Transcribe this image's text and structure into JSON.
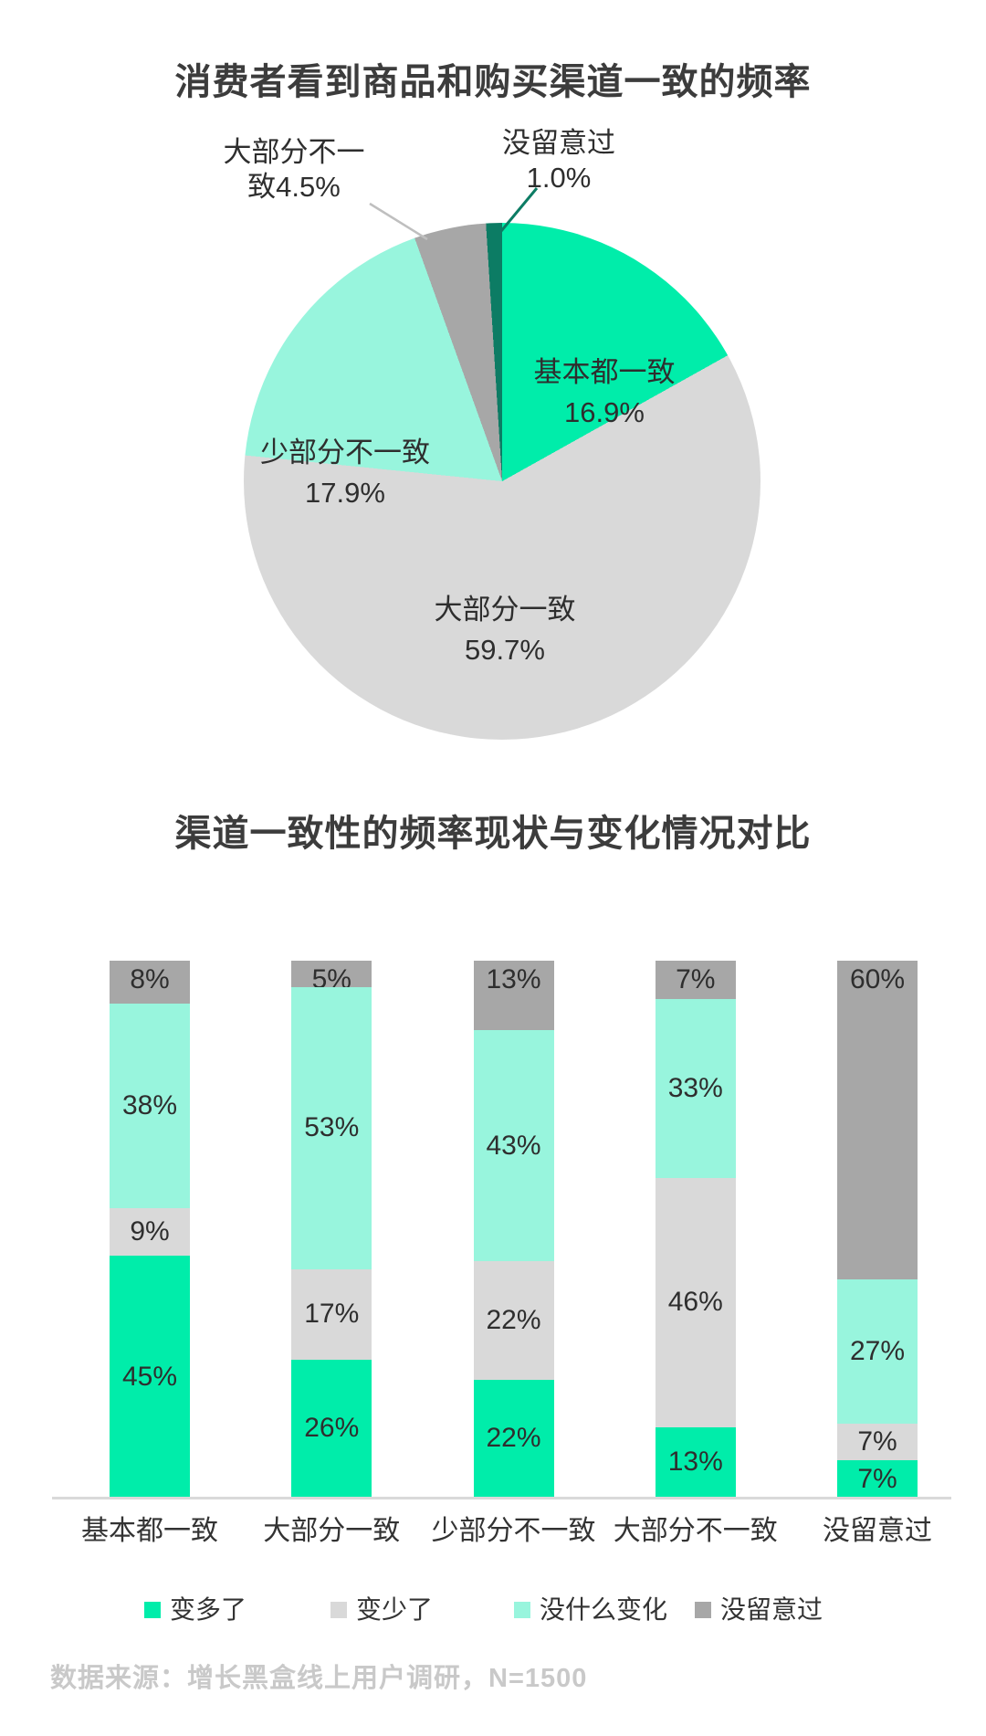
{
  "colors": {
    "green": "#00edaa",
    "mint": "#98f5dd",
    "dark_green": "#0c7c64",
    "light_gray": "#d9d9d9",
    "mid_gray": "#a7a7a7"
  },
  "footer": {
    "source": "数据来源：增长黑盒线上用户调研，N=1500"
  },
  "chart_data": [
    {
      "type": "pie",
      "title": "消费者看到商品和购买渠道一致的频率",
      "unit": "percent",
      "start_angle_deg": 0,
      "direction": "clockwise",
      "slices": [
        {
          "label": "基本都一致",
          "value": 16.9,
          "color": "green",
          "label_style": "inside"
        },
        {
          "label": "大部分一致",
          "value": 59.7,
          "color": "light_gray",
          "label_style": "inside"
        },
        {
          "label": "少部分不一致",
          "value": 17.9,
          "color": "mint",
          "label_style": "inside"
        },
        {
          "label": "大部分不一致",
          "value": 4.5,
          "color": "mid_gray",
          "label_style": "callout"
        },
        {
          "label": "没留意过",
          "value": 1.0,
          "color": "dark_green",
          "label_style": "callout"
        }
      ]
    },
    {
      "type": "stacked_bar",
      "title": "渠道一致性的频率现状与变化情况对比",
      "unit": "percent",
      "ylim": [
        0,
        100
      ],
      "grid": false,
      "value_labels": "inside",
      "legend_position": "bottom",
      "categories": [
        "基本都一致",
        "大部分一致",
        "少部分不一致",
        "大部分不一致",
        "没留意过"
      ],
      "series": [
        {
          "name": "变多了",
          "color": "green",
          "values": [
            45,
            26,
            22,
            13,
            7
          ]
        },
        {
          "name": "变少了",
          "color": "light_gray",
          "values": [
            9,
            17,
            22,
            46,
            7
          ]
        },
        {
          "name": "没什么变化",
          "color": "mint",
          "values": [
            38,
            53,
            43,
            33,
            27
          ]
        },
        {
          "name": "没留意过",
          "color": "mid_gray",
          "values": [
            8,
            5,
            13,
            7,
            60
          ]
        }
      ]
    }
  ]
}
